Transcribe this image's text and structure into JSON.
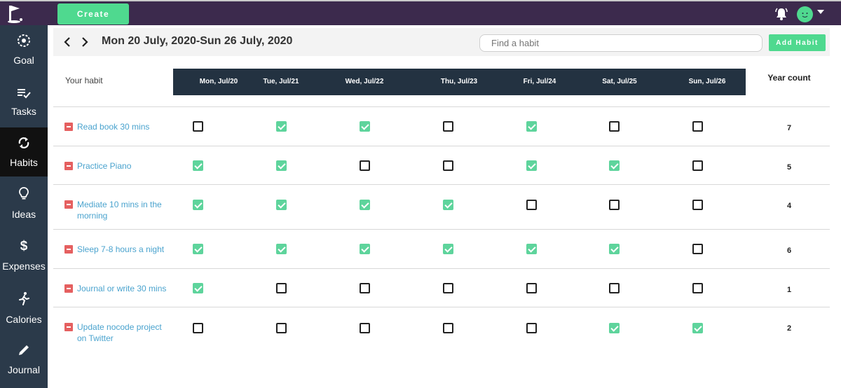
{
  "topbar": {
    "create_label": "Create"
  },
  "sidebar": {
    "items": [
      {
        "label": "Goal",
        "icon": "goal-icon"
      },
      {
        "label": "Tasks",
        "icon": "tasks-icon"
      },
      {
        "label": "Habits",
        "icon": "habits-icon",
        "active": true
      },
      {
        "label": "Ideas",
        "icon": "lightbulb-icon"
      },
      {
        "label": "Expenses",
        "icon": "dollar-icon"
      },
      {
        "label": "Calories",
        "icon": "running-icon"
      },
      {
        "label": "Journal",
        "icon": "pencil-icon"
      }
    ]
  },
  "week": {
    "title": "Mon 20 July, 2020-Sun 26 July, 2020"
  },
  "search": {
    "placeholder": "Find a habit"
  },
  "add_habit_label": "Add Habit",
  "table": {
    "habit_header": "Your habit",
    "days": [
      "Mon, Jul/20",
      "Tue, Jul/21",
      "Wed, Jul/22",
      "Thu, Jul/23",
      "Fri, Jul/24",
      "Sat, Jul/25",
      "Sun, Jul/26"
    ],
    "year_count_header": "Year count",
    "rows": [
      {
        "name": "Read book 30 mins",
        "checks": [
          false,
          true,
          true,
          false,
          true,
          false,
          false
        ],
        "count": "7"
      },
      {
        "name": "Practice Piano",
        "checks": [
          true,
          true,
          false,
          false,
          true,
          true,
          false
        ],
        "count": "5"
      },
      {
        "name": "Mediate 10 mins in the morning",
        "checks": [
          true,
          true,
          true,
          true,
          false,
          false,
          false
        ],
        "count": "4"
      },
      {
        "name": "Sleep 7-8 hours a night",
        "checks": [
          true,
          true,
          true,
          true,
          true,
          true,
          false
        ],
        "count": "6"
      },
      {
        "name": "Journal or write 30 mins",
        "checks": [
          true,
          false,
          false,
          false,
          false,
          false,
          false
        ],
        "count": "1"
      },
      {
        "name": "Update nocode project on Twitter",
        "checks": [
          false,
          false,
          false,
          false,
          false,
          true,
          true
        ],
        "count": "2"
      }
    ]
  },
  "colors": {
    "topbar": "#3c2a4d",
    "accent": "#4fd98f",
    "sidebar": "#2b3a4a",
    "header": "#233241",
    "link": "#4aa3ce",
    "remove": "#e56060"
  }
}
